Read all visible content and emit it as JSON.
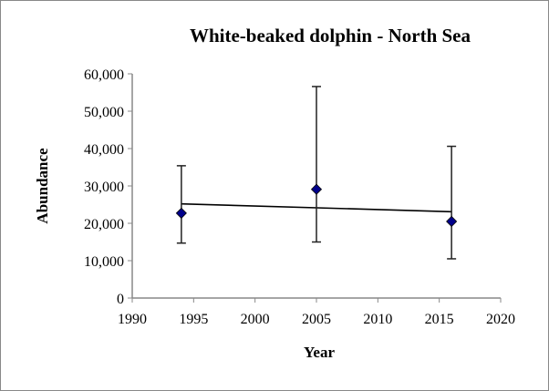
{
  "chart_data": {
    "type": "scatter",
    "title": "White-beaked dolphin - North Sea",
    "xlabel": "Year",
    "ylabel": "Abundance",
    "xlim": [
      1990,
      2020
    ],
    "ylim": [
      0,
      60000
    ],
    "xticks": [
      1990,
      1995,
      2000,
      2005,
      2010,
      2015,
      2020
    ],
    "yticks": [
      0,
      10000,
      20000,
      30000,
      40000,
      50000,
      60000
    ],
    "ytick_labels": [
      "0",
      "10,000",
      "20,000",
      "30,000",
      "40,000",
      "50,000",
      "60,000"
    ],
    "grid": false,
    "marker_color": "#00008b",
    "series": [
      {
        "name": "Abundance",
        "x": [
          1994,
          2005,
          2016
        ],
        "y": [
          22700,
          29100,
          20500
        ],
        "err_low": [
          14700,
          15000,
          10500
        ],
        "err_high": [
          35400,
          56600,
          40600
        ]
      }
    ],
    "trendline": {
      "type": "linear",
      "x": [
        1994,
        2016
      ],
      "y": [
        25200,
        23100
      ]
    }
  }
}
